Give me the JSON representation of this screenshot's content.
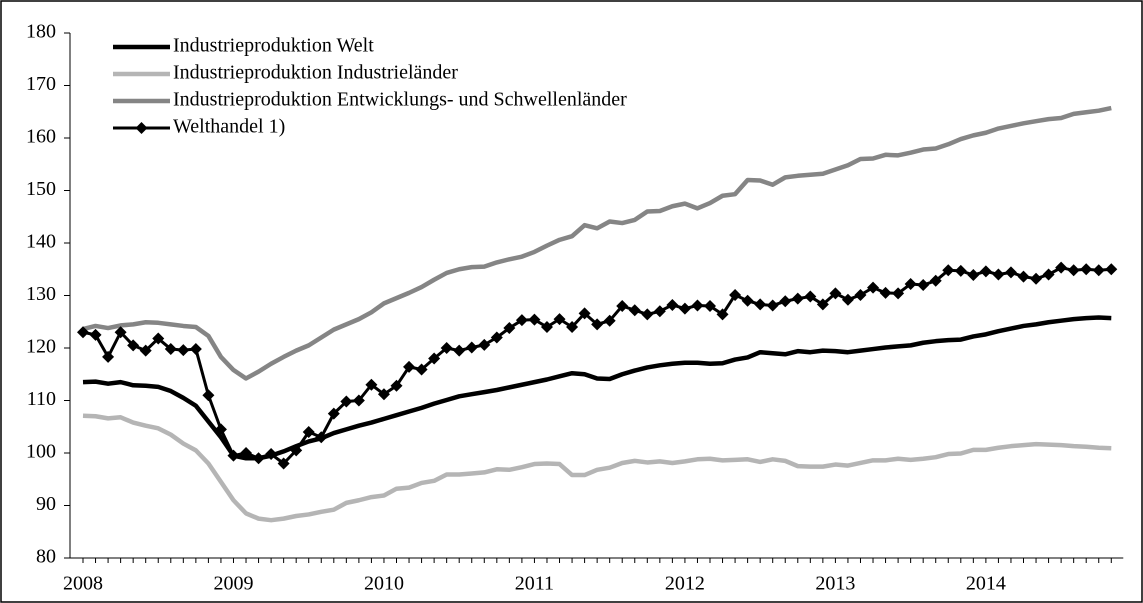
{
  "chart_data": {
    "type": "line",
    "categories": [
      "2008",
      null,
      null,
      null,
      null,
      null,
      null,
      null,
      null,
      null,
      null,
      null,
      "2009",
      null,
      null,
      null,
      null,
      null,
      null,
      null,
      null,
      null,
      null,
      null,
      "2010",
      null,
      null,
      null,
      null,
      null,
      null,
      null,
      null,
      null,
      null,
      null,
      "2011",
      null,
      null,
      null,
      null,
      null,
      null,
      null,
      null,
      null,
      null,
      null,
      "2012",
      null,
      null,
      null,
      null,
      null,
      null,
      null,
      null,
      null,
      null,
      null,
      "2013",
      null,
      null,
      null,
      null,
      null,
      null,
      null,
      null,
      null,
      null,
      null,
      "2014",
      null,
      null,
      null,
      null,
      null,
      null,
      null,
      null,
      null,
      null
    ],
    "ylim": [
      80,
      180
    ],
    "yticks": [
      80,
      90,
      100,
      110,
      120,
      130,
      140,
      150,
      160,
      170,
      180
    ],
    "grid": false,
    "legend": "top-left",
    "series": [
      {
        "name": "Industrieproduktion Welt",
        "color": "#000000",
        "marker": "none",
        "values": [
          113.5,
          113.6,
          113.2,
          113.5,
          112.9,
          112.8,
          112.6,
          111.8,
          110.5,
          109.0,
          106.0,
          103.0,
          99.5,
          99.0,
          99.0,
          99.5,
          100.3,
          101.3,
          102.2,
          102.8,
          103.8,
          104.5,
          105.2,
          105.8,
          106.5,
          107.2,
          107.9,
          108.6,
          109.4,
          110.1,
          110.8,
          111.2,
          111.6,
          112.0,
          112.5,
          113.0,
          113.5,
          114.0,
          114.6,
          115.2,
          115.0,
          114.2,
          114.1,
          115.0,
          115.7,
          116.3,
          116.7,
          117.0,
          117.2,
          117.2,
          117.0,
          117.1,
          117.8,
          118.2,
          119.2,
          119.0,
          118.8,
          119.4,
          119.2,
          119.5,
          119.4,
          119.2,
          119.5,
          119.8,
          120.1,
          120.3,
          120.5,
          121.0,
          121.3,
          121.5,
          121.6,
          122.2,
          122.6,
          123.2,
          123.7,
          124.2,
          124.5,
          124.9,
          125.2,
          125.5,
          125.7,
          125.8,
          125.7
        ]
      },
      {
        "name": "Industrieproduktion Industrieländer",
        "color": "#b5b5b5",
        "marker": "none",
        "values": [
          107.1,
          107.0,
          106.6,
          106.8,
          105.8,
          105.2,
          104.7,
          103.5,
          101.8,
          100.5,
          98.0,
          94.5,
          91.0,
          88.5,
          87.5,
          87.2,
          87.5,
          88.0,
          88.3,
          88.8,
          89.2,
          90.5,
          91.0,
          91.6,
          91.9,
          93.2,
          93.4,
          94.3,
          94.7,
          95.9,
          95.9,
          96.1,
          96.3,
          96.9,
          96.8,
          97.3,
          97.9,
          98.0,
          97.9,
          95.8,
          95.8,
          96.8,
          97.2,
          98.1,
          98.5,
          98.2,
          98.4,
          98.1,
          98.4,
          98.8,
          98.9,
          98.6,
          98.7,
          98.8,
          98.3,
          98.8,
          98.5,
          97.5,
          97.4,
          97.4,
          97.8,
          97.6,
          98.1,
          98.6,
          98.6,
          98.9,
          98.7,
          98.9,
          99.2,
          99.8,
          99.9,
          100.6,
          100.6,
          101.0,
          101.3,
          101.5,
          101.7,
          101.6,
          101.5,
          101.3,
          101.2,
          101.0,
          100.9
        ]
      },
      {
        "name": "Industrieproduktion Entwicklungs- und Schwellenländer",
        "color": "#858585",
        "marker": "none",
        "values": [
          123.6,
          124.2,
          123.8,
          124.3,
          124.5,
          124.9,
          124.8,
          124.5,
          124.2,
          124.0,
          122.3,
          118.3,
          115.8,
          114.2,
          115.5,
          117.0,
          118.3,
          119.5,
          120.5,
          122.0,
          123.5,
          124.5,
          125.5,
          126.8,
          128.5,
          129.5,
          130.5,
          131.6,
          133.0,
          134.3,
          135.0,
          135.4,
          135.5,
          136.3,
          136.9,
          137.4,
          138.3,
          139.5,
          140.6,
          141.3,
          143.4,
          142.8,
          144.1,
          143.8,
          144.4,
          146.0,
          146.1,
          147.0,
          147.5,
          146.6,
          147.6,
          149.0,
          149.3,
          152.0,
          151.9,
          151.1,
          152.5,
          152.8,
          153.0,
          153.2,
          154.0,
          154.8,
          156.0,
          156.1,
          156.8,
          156.7,
          157.2,
          157.8,
          158.0,
          158.8,
          159.8,
          160.5,
          161.0,
          161.8,
          162.3,
          162.8,
          163.2,
          163.6,
          163.8,
          164.6,
          164.9,
          165.2,
          165.7
        ]
      },
      {
        "name": "Welthandel 1)",
        "color": "#000000",
        "marker": "diamond",
        "values": [
          123.0,
          122.5,
          118.3,
          123.0,
          120.5,
          119.5,
          121.8,
          119.8,
          119.6,
          119.8,
          111.0,
          104.5,
          99.5,
          100.0,
          99.0,
          99.8,
          98.0,
          100.5,
          104.0,
          103.0,
          107.5,
          109.8,
          110.0,
          113.0,
          111.2,
          112.8,
          116.4,
          115.9,
          118.0,
          120.0,
          119.5,
          120.1,
          120.6,
          122.0,
          123.8,
          125.3,
          125.4,
          124.0,
          125.5,
          124.0,
          126.6,
          124.5,
          125.2,
          128.0,
          127.2,
          126.4,
          127.0,
          128.2,
          127.5,
          128.1,
          128.0,
          126.4,
          130.1,
          129.0,
          128.3,
          128.1,
          128.9,
          129.4,
          129.8,
          128.3,
          130.4,
          129.2,
          130.1,
          131.5,
          130.5,
          130.4,
          132.2,
          132.0,
          132.8,
          134.8,
          134.7,
          133.9,
          134.6,
          134.0,
          134.4,
          133.6,
          133.2,
          134.0,
          135.3,
          134.8,
          135.0,
          134.8,
          135.0
        ]
      }
    ]
  }
}
